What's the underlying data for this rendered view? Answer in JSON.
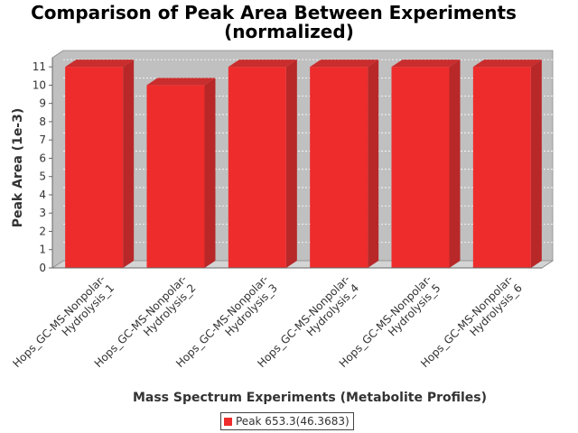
{
  "chart_data": {
    "type": "bar",
    "title_lines": [
      "Comparison of Peak Area Between Experiments",
      "(normalized)"
    ],
    "xlabel": "Mass Spectrum Experiments (Metabolite Profiles)",
    "ylabel": "Peak Area (1e-3)",
    "ylim": [
      0,
      11.5
    ],
    "yticks": [
      0,
      1,
      2,
      3,
      4,
      5,
      6,
      7,
      8,
      9,
      10,
      11
    ],
    "categories": [
      [
        "Hops_GC-MS-Nonpolar-",
        "Hydrolysis_1"
      ],
      [
        "Hops_GC-MS-Nonpolar-",
        "Hydrolysis_2"
      ],
      [
        "Hops_GC-MS-Nonpolar-",
        "Hydrolysis_3"
      ],
      [
        "Hops_GC-MS-Nonpolar-",
        "Hydrolysis_4"
      ],
      [
        "Hops_GC-MS-Nonpolar-",
        "Hydrolysis_5"
      ],
      [
        "Hops_GC-MS-Nonpolar-",
        "Hydrolysis_6"
      ]
    ],
    "series": [
      {
        "name": "Peak 653.3(46.3683)",
        "values": [
          11,
          10,
          11,
          11,
          11,
          11
        ],
        "color": "#ee2c2c"
      }
    ],
    "grid": true,
    "legend_position": "bottom-center",
    "colors": {
      "plot_background": "#c0c0c0",
      "bar_front": "#ee2c2c",
      "bar_side": "#b82828",
      "bar_top": "#c92d2d"
    }
  }
}
